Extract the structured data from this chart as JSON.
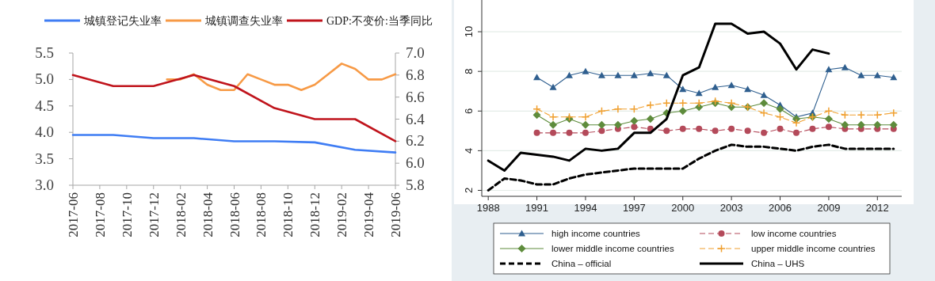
{
  "chart_data": [
    {
      "type": "line",
      "legend": "top",
      "xlim": [
        "2017-06",
        "2019-06"
      ],
      "xticks": [
        "2017-06",
        "2017-08",
        "2017-10",
        "2017-12",
        "2018-02",
        "2018-04",
        "2018-06",
        "2018-08",
        "2018-10",
        "2018-12",
        "2019-02",
        "2019-04",
        "2019-06"
      ],
      "ylim": [
        3,
        5.5
      ],
      "yticks": [
        {
          "value": 3,
          "label": "3.0"
        },
        {
          "value": 3.5,
          "label": "3.5"
        },
        {
          "value": 4,
          "label": "4.0"
        },
        {
          "value": 4.5,
          "label": "4.5"
        },
        {
          "value": 5,
          "label": "5.0"
        },
        {
          "value": 5.5,
          "label": "5.5"
        }
      ],
      "y2lim": [
        5.8,
        7.0
      ],
      "y2ticks": [
        5.8,
        {
          "value": 6,
          "label": "6.0"
        },
        6.2,
        6.4,
        6.6,
        6.8,
        {
          "value": 7,
          "label": "7.0"
        }
      ],
      "series": [
        {
          "name": "城镇登记失业率",
          "color": "#3f7df4",
          "x": [
            "2017-06",
            "2017-09",
            "2017-12",
            "2018-03",
            "2018-06",
            "2018-09",
            "2018-12",
            "2019-03",
            "2019-06"
          ],
          "values": [
            3.95,
            3.95,
            3.89,
            3.89,
            3.83,
            3.83,
            3.81,
            3.67,
            3.62
          ]
        },
        {
          "name": "城镇调查失业率",
          "color": "#f79a46",
          "x": [
            "2018-01",
            "2018-02",
            "2018-03",
            "2018-04",
            "2018-05",
            "2018-06",
            "2018-07",
            "2018-08",
            "2018-09",
            "2018-10",
            "2018-11",
            "2018-12",
            "2019-01",
            "2019-02",
            "2019-03",
            "2019-04",
            "2019-05",
            "2019-06"
          ],
          "values": [
            5.0,
            5.0,
            5.1,
            4.9,
            4.8,
            4.8,
            5.1,
            5.0,
            4.9,
            4.9,
            4.8,
            4.9,
            5.1,
            5.3,
            5.2,
            5.0,
            5.0,
            5.1
          ]
        },
        {
          "name": "GDP:不变价:当季同比",
          "color": "#c0141c",
          "axis": "y2",
          "x": [
            "2017-06",
            "2017-09",
            "2017-12",
            "2018-03",
            "2018-06",
            "2018-09",
            "2018-12",
            "2019-03",
            "2019-06"
          ],
          "values": [
            6.8,
            6.7,
            6.7,
            6.8,
            6.7,
            6.5,
            6.4,
            6.4,
            6.2
          ]
        }
      ]
    },
    {
      "type": "line",
      "legend": "bottom",
      "grid": "y",
      "xlim": [
        1987.6,
        2013.5
      ],
      "xticks": [
        1988,
        1991,
        1994,
        1997,
        2000,
        2003,
        2006,
        2009,
        2012
      ],
      "ylim": [
        1.7,
        11.6
      ],
      "yticks": [
        2,
        4,
        6,
        8,
        10
      ],
      "series": [
        {
          "name": "high income countries",
          "color": "#2f5f8f",
          "marker": "triangle",
          "line_style": "solid",
          "x": [
            1991,
            1992,
            1993,
            1994,
            1995,
            1996,
            1997,
            1998,
            1999,
            2000,
            2001,
            2002,
            2003,
            2004,
            2005,
            2006,
            2007,
            2008,
            2009,
            2010,
            2011,
            2012,
            2013
          ],
          "values": [
            7.7,
            7.2,
            7.8,
            8.0,
            7.8,
            7.8,
            7.8,
            7.9,
            7.8,
            7.1,
            6.9,
            7.2,
            7.3,
            7.1,
            6.8,
            6.3,
            5.7,
            5.9,
            8.1,
            8.2,
            7.8,
            7.8,
            7.7
          ]
        },
        {
          "name": "low income countries",
          "color": "#b44a5a",
          "marker": "circle",
          "line_style": "dashed",
          "x": [
            1991,
            1992,
            1993,
            1994,
            1995,
            1996,
            1997,
            1998,
            1999,
            2000,
            2001,
            2002,
            2003,
            2004,
            2005,
            2006,
            2007,
            2008,
            2009,
            2010,
            2011,
            2012,
            2013
          ],
          "values": [
            4.9,
            4.9,
            4.9,
            4.9,
            5.0,
            5.1,
            5.2,
            5.1,
            5.0,
            5.1,
            5.1,
            5.0,
            5.1,
            5.0,
            4.9,
            5.1,
            4.9,
            5.1,
            5.2,
            5.1,
            5.1,
            5.1,
            5.1
          ]
        },
        {
          "name": "lower middle income countries",
          "color": "#5e8c3c",
          "marker": "diamond",
          "line_style": "solid",
          "x": [
            1991,
            1992,
            1993,
            1994,
            1995,
            1996,
            1997,
            1998,
            1999,
            2000,
            2001,
            2002,
            2003,
            2004,
            2005,
            2006,
            2007,
            2008,
            2009,
            2010,
            2011,
            2012,
            2013
          ],
          "values": [
            5.8,
            5.3,
            5.6,
            5.3,
            5.3,
            5.3,
            5.5,
            5.6,
            5.9,
            6.0,
            6.2,
            6.4,
            6.2,
            6.2,
            6.4,
            6.1,
            5.6,
            5.7,
            5.6,
            5.3,
            5.3,
            5.3,
            5.3
          ]
        },
        {
          "name": "upper middle income countries",
          "color": "#f0a030",
          "marker": "cross",
          "line_style": "dashed",
          "x": [
            1991,
            1992,
            1993,
            1994,
            1995,
            1996,
            1997,
            1998,
            1999,
            2000,
            2001,
            2002,
            2003,
            2004,
            2005,
            2006,
            2007,
            2008,
            2009,
            2010,
            2011,
            2012,
            2013
          ],
          "values": [
            6.1,
            5.7,
            5.7,
            5.7,
            6.0,
            6.1,
            6.1,
            6.3,
            6.4,
            6.4,
            6.4,
            6.5,
            6.4,
            6.2,
            5.9,
            5.7,
            5.4,
            5.7,
            6.0,
            5.8,
            5.8,
            5.8,
            5.9
          ]
        },
        {
          "name": "China – official",
          "color": "#000000",
          "marker": "none",
          "line_style": "dashed",
          "x": [
            1988,
            1989,
            1990,
            1991,
            1992,
            1993,
            1994,
            1995,
            1996,
            1997,
            1998,
            1999,
            2000,
            2001,
            2002,
            2003,
            2004,
            2005,
            2006,
            2007,
            2008,
            2009,
            2010,
            2011,
            2012,
            2013
          ],
          "values": [
            2.0,
            2.6,
            2.5,
            2.3,
            2.3,
            2.6,
            2.8,
            2.9,
            3.0,
            3.1,
            3.1,
            3.1,
            3.1,
            3.6,
            4.0,
            4.3,
            4.2,
            4.2,
            4.1,
            4.0,
            4.2,
            4.3,
            4.1,
            4.1,
            4.1,
            4.1
          ]
        },
        {
          "name": "China – UHS",
          "color": "#000000",
          "marker": "none",
          "line_style": "solid",
          "x": [
            1988,
            1989,
            1990,
            1991,
            1992,
            1993,
            1994,
            1995,
            1996,
            1997,
            1998,
            1999,
            2000,
            2001,
            2002,
            2003,
            2004,
            2005,
            2006,
            2007,
            2008,
            2009
          ],
          "values": [
            3.5,
            3.0,
            3.9,
            3.8,
            3.7,
            3.5,
            4.1,
            4.0,
            4.1,
            4.9,
            4.9,
            5.6,
            7.8,
            8.2,
            10.4,
            10.4,
            9.9,
            10.0,
            9.4,
            8.1,
            9.1,
            8.9
          ]
        }
      ]
    }
  ]
}
